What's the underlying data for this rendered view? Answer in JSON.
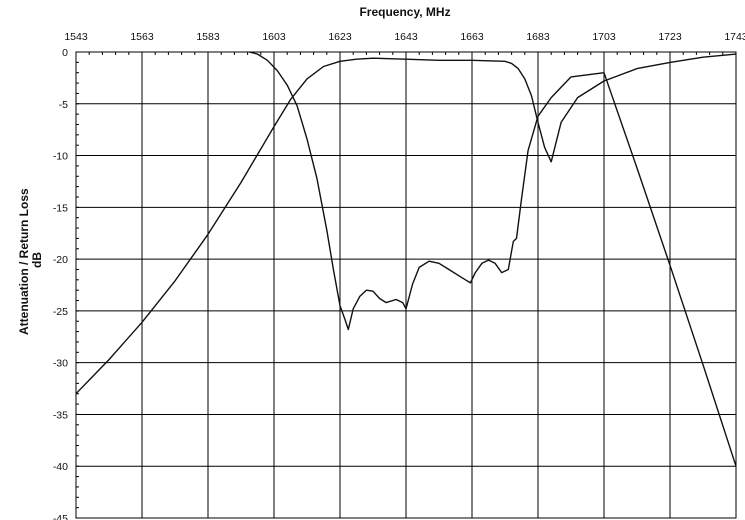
{
  "chart_data": {
    "type": "line",
    "title": "",
    "xlabel": "Frequency, MHz",
    "ylabel_line1": "Attenuation / Return Loss",
    "ylabel_line2": "dB",
    "xlim": [
      1543,
      1743
    ],
    "ylim": [
      -45,
      0
    ],
    "x_ticks": [
      1543,
      1563,
      1583,
      1603,
      1623,
      1643,
      1663,
      1683,
      1703,
      1723,
      1743
    ],
    "y_ticks": [
      0,
      -5,
      -10,
      -15,
      -20,
      -25,
      -30,
      -35,
      -40,
      -45
    ],
    "x_axis_position": "top",
    "grid": true,
    "series": [
      {
        "x": [
          1543,
          1553,
          1563,
          1573,
          1583,
          1593,
          1603,
          1608,
          1613,
          1618,
          1623,
          1628,
          1633,
          1643,
          1653,
          1663,
          1668,
          1673,
          1675,
          1677,
          1679,
          1681,
          1683,
          1685,
          1687,
          1690,
          1695,
          1703,
          1713,
          1723,
          1733,
          1743
        ],
        "values": [
          -33,
          -29.7,
          -26.1,
          -22.1,
          -17.6,
          -12.6,
          -7.2,
          -4.6,
          -2.6,
          -1.4,
          -0.9,
          -0.7,
          -0.6,
          -0.7,
          -0.8,
          -0.8,
          -0.85,
          -0.9,
          -1.1,
          -1.6,
          -2.6,
          -4.2,
          -6.8,
          -9.2,
          -10.6,
          -6.8,
          -4.4,
          -2.8,
          -1.6,
          -1.0,
          -0.5,
          -0.2
        ]
      },
      {
        "x": [
          1595.5,
          1598,
          1601,
          1604,
          1607,
          1610,
          1613,
          1616,
          1619,
          1621,
          1623,
          1624.5,
          1625.5,
          1627,
          1629,
          1631,
          1633,
          1635,
          1637,
          1640,
          1642,
          1643,
          1645,
          1647,
          1650,
          1653,
          1656,
          1659,
          1661,
          1662.5,
          1664,
          1666,
          1668,
          1670,
          1672,
          1674,
          1675.5,
          1676.5,
          1678,
          1680,
          1683,
          1687,
          1693,
          1703,
          1713,
          1723,
          1733,
          1743
        ],
        "values": [
          0,
          -0.2,
          -0.8,
          -1.8,
          -3.2,
          -5.2,
          -8.4,
          -12.2,
          -17.2,
          -21,
          -24.5,
          -25.8,
          -26.8,
          -24.8,
          -23.6,
          -23,
          -23.1,
          -23.8,
          -24.2,
          -23.9,
          -24.2,
          -24.8,
          -22.4,
          -20.8,
          -20.2,
          -20.4,
          -21,
          -21.6,
          -22,
          -22.3,
          -21.3,
          -20.4,
          -20.1,
          -20.4,
          -21.3,
          -21,
          -18.3,
          -18,
          -14.2,
          -9.5,
          -6.2,
          -4.4,
          -2.4,
          -2.0,
          -11.2,
          -20.6,
          -30.2,
          -40.0
        ]
      }
    ]
  }
}
